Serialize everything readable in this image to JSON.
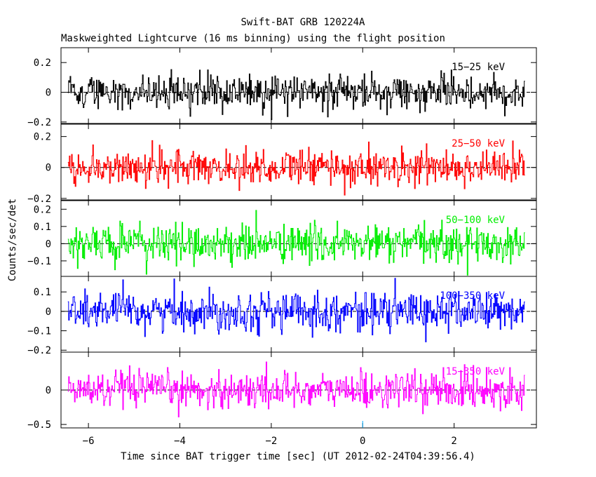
{
  "chart_data": {
    "type": "line",
    "title": "Swift-BAT GRB 120224A",
    "subtitle": "Maskweighted Lightcurve (16 ms binning) using the flight position",
    "xlabel": "Time since BAT trigger time [sec] (UT 2012-02-24T04:39:56.4)",
    "ylabel": "Counts/sec/det",
    "xlim": [
      -6.6,
      3.8
    ],
    "data_x_range": [
      -6.45,
      3.55
    ],
    "x_ticks": [
      -6,
      -4,
      -2,
      0,
      2
    ],
    "x_tick_labels": [
      "−6",
      "−4",
      "−2",
      "0",
      "2"
    ],
    "trigger_time": 0,
    "panels": [
      {
        "name": "15−25 keV",
        "color": "#000000",
        "ylim": [
          -0.21,
          0.3
        ],
        "y_ticks": [
          0.2,
          0,
          -0.2
        ],
        "y_tick_labels": [
          "0.2",
          "0",
          "−0.2"
        ],
        "noise_sigma": 0.055
      },
      {
        "name": "25−50 keV",
        "color": "#ff0000",
        "ylim": [
          -0.21,
          0.28
        ],
        "y_ticks": [
          0.2,
          0,
          -0.2
        ],
        "y_tick_labels": [
          "0.2",
          "0",
          "−0.2"
        ],
        "noise_sigma": 0.06
      },
      {
        "name": "50−100 keV",
        "color": "#00ee00",
        "ylim": [
          -0.19,
          0.25
        ],
        "y_ticks": [
          0.2,
          0.1,
          0,
          -0.1
        ],
        "y_tick_labels": [
          "0.2",
          "0.1",
          "0",
          "−0.1"
        ],
        "noise_sigma": 0.055
      },
      {
        "name": "100−350 keV",
        "color": "#0000ff",
        "ylim": [
          -0.21,
          0.18
        ],
        "y_ticks": [
          0.1,
          0,
          -0.1,
          -0.2
        ],
        "y_tick_labels": [
          "0.1",
          "0",
          "−0.1",
          "−0.2"
        ],
        "noise_sigma": 0.05
      },
      {
        "name": "15−350 keV",
        "color": "#ff00ff",
        "ylim": [
          -0.55,
          0.55
        ],
        "y_ticks": [
          0,
          -0.5
        ],
        "y_tick_labels": [
          "0",
          "−0.5"
        ],
        "noise_sigma": 0.13
      }
    ]
  }
}
